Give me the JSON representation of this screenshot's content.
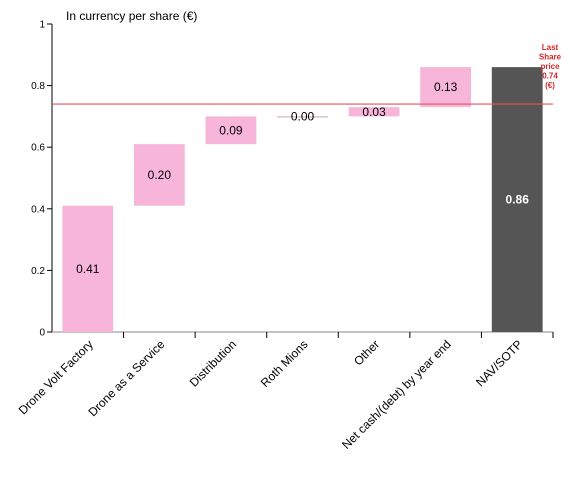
{
  "chart_data": {
    "type": "bar",
    "subtype": "waterfall",
    "title": "In currency per share (€)",
    "xlabel": "",
    "ylabel": "",
    "ylim": [
      0,
      1
    ],
    "yticks": [
      0,
      0.2,
      0.4,
      0.6,
      0.8,
      1
    ],
    "ytick_labels": [
      "0",
      "0.2",
      "0.4",
      "0.6",
      "0.8",
      "1"
    ],
    "categories": [
      "Drone Volt Factory",
      "Drone as a Service",
      "Distribution",
      "Roth Mions",
      "Other",
      "Net cash/(debt) by year end",
      "NAV/SOTP"
    ],
    "values": [
      0.41,
      0.2,
      0.09,
      0.0,
      0.03,
      0.13,
      0.86
    ],
    "value_labels": [
      "0.41",
      "0.20",
      "0.09",
      "0.00",
      "0.03",
      "0.13",
      "0.86"
    ],
    "is_total": [
      false,
      false,
      false,
      false,
      false,
      false,
      true
    ],
    "grid": false,
    "reference_line": {
      "value": 0.74,
      "label_lines": [
        "Last",
        "Share",
        "price",
        "0.74",
        "(€)"
      ]
    },
    "colors": {
      "increment": "#f7b6d9",
      "total": "#555555",
      "reference": "#e0555b",
      "reference_text": "#d62728",
      "axis": "#000000"
    }
  }
}
